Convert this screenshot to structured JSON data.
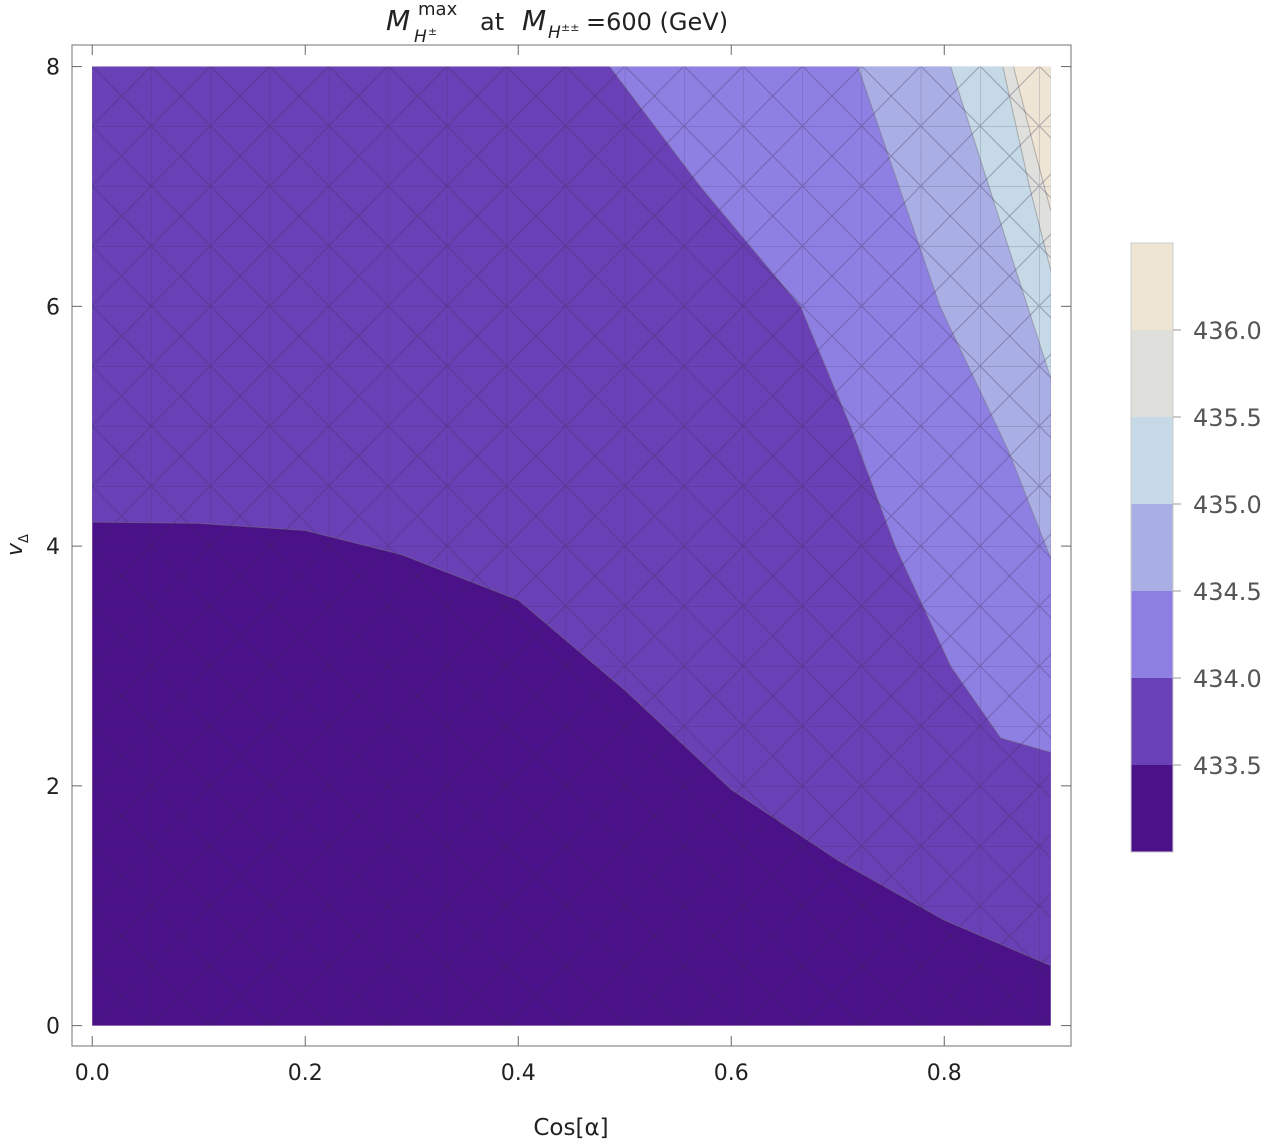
{
  "chart_data": {
    "type": "contour",
    "title": {
      "main": "M",
      "sup": "max",
      "sub": "H",
      "subsup": "±",
      "middle": "at",
      "main2": "M",
      "sub2": "H",
      "subsup2": "±±",
      "rest": "=600 (GeV)"
    },
    "x_label": "Cos[α]",
    "y_label": {
      "main": "v",
      "sub": "Δ"
    },
    "xlim": [
      -0.019,
      0.919
    ],
    "ylim": [
      -0.17,
      8.18
    ],
    "xticks": [
      {
        "value": 0,
        "label": "0.0"
      },
      0.2,
      0.4,
      0.6,
      0.8
    ],
    "yticks": [
      0,
      2,
      4,
      6,
      8
    ],
    "domain_x": [
      0,
      0.9
    ],
    "domain_y": [
      0,
      8
    ],
    "colors": [
      "#4b1189",
      "#6a40b6",
      "#8e80e2",
      "#a9aee4",
      "#c5d9e6",
      "#dfe0db",
      "#efe5d4"
    ],
    "contours": [
      {
        "level": 433.5,
        "x": [
          0,
          0.1,
          0.2,
          0.29,
          0.4,
          0.5,
          0.6,
          0.7,
          0.8,
          0.9
        ],
        "y": [
          4.2,
          4.19,
          4.13,
          3.93,
          3.55,
          2.8,
          1.97,
          1.38,
          0.88,
          0.5
        ]
      },
      {
        "level": 434.0,
        "x": [
          0.486,
          0.571,
          0.665,
          0.712,
          0.754,
          0.806,
          0.853,
          0.9
        ],
        "y": [
          8,
          7,
          6,
          5,
          4,
          3,
          2.4,
          2.28
        ]
      },
      {
        "level": 434.5,
        "x": [
          0.719,
          0.796,
          0.86,
          0.9
        ],
        "y": [
          8,
          6,
          4.8,
          3.9
        ]
      },
      {
        "level": 435.0,
        "x": [
          0.806,
          0.86,
          0.9
        ],
        "y": [
          8,
          6.5,
          5.4
        ]
      },
      {
        "level": 435.5,
        "x": [
          0.855,
          0.88,
          0.9
        ],
        "y": [
          8,
          7,
          6.3
        ]
      },
      {
        "level": 436.0,
        "x": [
          0.865,
          0.885,
          0.9
        ],
        "y": [
          8,
          7.3,
          6.8
        ]
      }
    ],
    "colorbar": {
      "lim": [
        433.0,
        436.5
      ],
      "ticks": [
        {
          "value": 433.5,
          "label": "433.5"
        },
        {
          "value": 434.0,
          "label": "434.0"
        },
        {
          "value": 434.5,
          "label": "434.5"
        },
        {
          "value": 435.0,
          "label": "435.0"
        },
        {
          "value": 435.5,
          "label": "435.5"
        },
        {
          "value": 436.0,
          "label": "436.0"
        }
      ]
    }
  }
}
